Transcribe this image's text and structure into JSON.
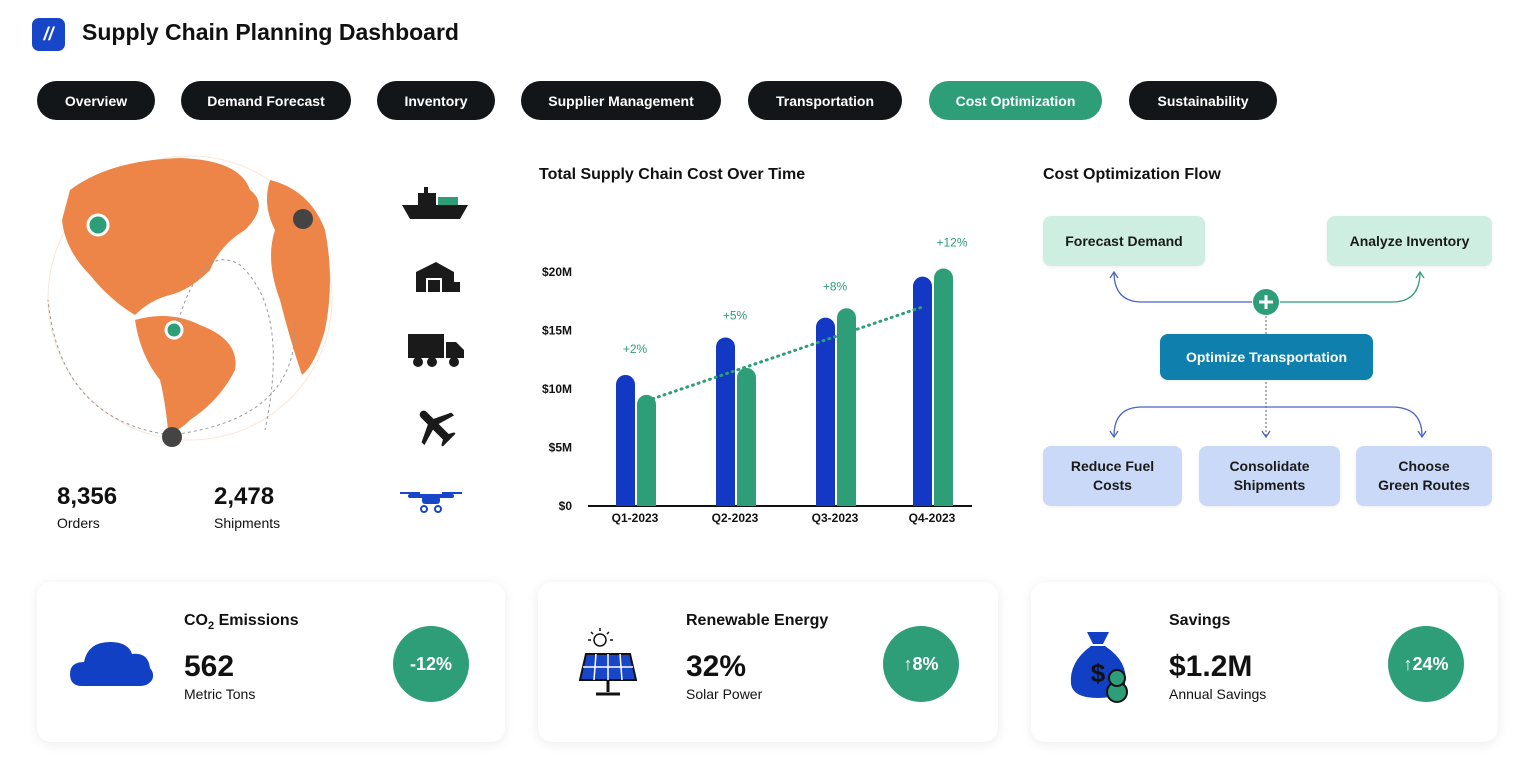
{
  "header": {
    "title": "Supply Chain Planning Dashboard",
    "logo_icon": "logo-icon"
  },
  "tabs": [
    {
      "label": "Overview",
      "active": false
    },
    {
      "label": "Demand Forecast",
      "active": false
    },
    {
      "label": "Inventory",
      "active": false
    },
    {
      "label": "Supplier Management",
      "active": false
    },
    {
      "label": "Transportation",
      "active": false
    },
    {
      "label": "Cost Optimization",
      "active": true
    },
    {
      "label": "Sustainability",
      "active": false
    }
  ],
  "stats": {
    "orders": {
      "value": "8,356",
      "label": "Orders"
    },
    "shipments": {
      "value": "2,478",
      "label": "Shipments"
    }
  },
  "transport_icons": [
    "ship-icon",
    "warehouse-icon",
    "truck-icon",
    "airplane-icon",
    "drone-icon"
  ],
  "chart_data": {
    "type": "bar",
    "title": "Total Supply Chain Cost Over Time",
    "categories": [
      "Q1-2023",
      "Q2-2023",
      "Q3-2023",
      "Q4-2023"
    ],
    "series": [
      {
        "values": [
          11.2,
          14.4,
          16.1,
          19.6
        ],
        "color": "#1238c4"
      },
      {
        "values": [
          9.5,
          11.8,
          16.9,
          20.3
        ],
        "color": "#2e9e78"
      }
    ],
    "trend": {
      "start": 9,
      "end": 17,
      "color": "#2e9e78",
      "style": "dotted"
    },
    "annotations": [
      "+2%",
      "+5%",
      "+8%",
      "+12%"
    ],
    "yticks": [
      "$0",
      "$5M",
      "$10M",
      "$15M",
      "$20M"
    ],
    "ylim": [
      0,
      20
    ],
    "yunit": "$M",
    "grid": false
  },
  "flow": {
    "title": "Cost Optimization Flow",
    "top": [
      "Forecast Demand",
      "Analyze Inventory"
    ],
    "center": "Optimize Transportation",
    "bottom": [
      [
        "Reduce Fuel",
        "Costs"
      ],
      [
        "Consolidate",
        "Shipments"
      ],
      [
        "Choose",
        "Green Routes"
      ]
    ]
  },
  "cards": [
    {
      "title_main": "CO",
      "title_sub": "2",
      "title_rest": " Emissions",
      "value": "562",
      "sub": "Metric Tons",
      "badge": "-12%",
      "icon": "cloud-icon"
    },
    {
      "title": "Renewable Energy",
      "value": "32%",
      "sub": "Solar Power",
      "badge": "↑8%",
      "icon": "solar-panel-icon"
    },
    {
      "title": "Savings",
      "value": "$1.2M",
      "sub": "Annual Savings",
      "badge": "↑24%",
      "icon": "money-bag-icon"
    }
  ],
  "colors": {
    "accent": "#2e9e78",
    "primary_blue": "#1238c4",
    "tab_dark": "#131619",
    "globe": "#ee8548"
  }
}
